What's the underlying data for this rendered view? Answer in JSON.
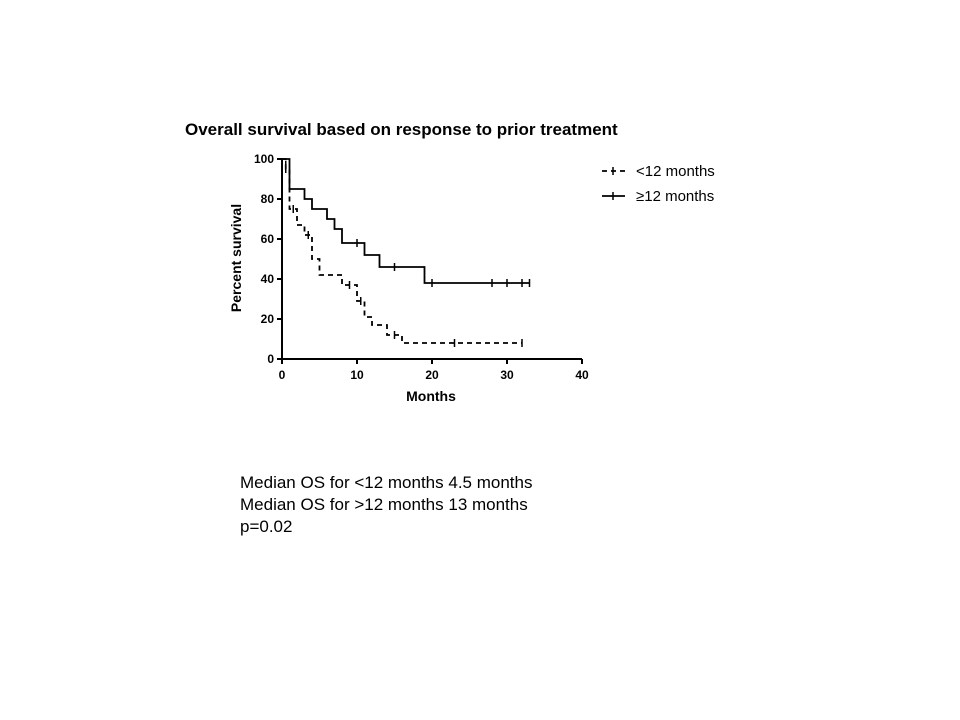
{
  "chart_data": {
    "type": "line",
    "subtype": "kaplan-meier step plot",
    "title": "Overall survival based on response to prior treatment",
    "xlabel": "Months",
    "ylabel": "Percent survival",
    "xlim": [
      0,
      40
    ],
    "ylim": [
      0,
      100
    ],
    "xticks": [
      0,
      10,
      20,
      30,
      40
    ],
    "yticks": [
      0,
      20,
      40,
      60,
      80,
      100
    ],
    "grid": false,
    "legend_position": "right",
    "series": [
      {
        "name": "<12 months",
        "line_style": "dashed",
        "color": "#000000",
        "steps": [
          [
            0,
            100
          ],
          [
            0.5,
            95
          ],
          [
            1,
            75
          ],
          [
            2,
            67
          ],
          [
            3,
            62
          ],
          [
            4,
            50
          ],
          [
            5,
            42
          ],
          [
            8,
            37
          ],
          [
            10,
            29
          ],
          [
            11,
            21
          ],
          [
            12,
            17
          ],
          [
            14,
            12
          ],
          [
            16,
            8
          ],
          [
            32,
            8
          ]
        ],
        "censored": [
          [
            0.5,
            95
          ],
          [
            1.5,
            75
          ],
          [
            3.5,
            62
          ],
          [
            9,
            37
          ],
          [
            10.5,
            29
          ],
          [
            15,
            12
          ],
          [
            23,
            8
          ],
          [
            32,
            8
          ]
        ]
      },
      {
        "name": "≥12 months",
        "line_style": "solid",
        "color": "#000000",
        "steps": [
          [
            0,
            100
          ],
          [
            1,
            85
          ],
          [
            3,
            80
          ],
          [
            4,
            75
          ],
          [
            6,
            70
          ],
          [
            7,
            65
          ],
          [
            8,
            58
          ],
          [
            11,
            52
          ],
          [
            13,
            46
          ],
          [
            19,
            38
          ],
          [
            33,
            38
          ]
        ],
        "censored": [
          [
            0.5,
            97
          ],
          [
            10,
            58
          ],
          [
            15,
            46
          ],
          [
            20,
            38
          ],
          [
            28,
            38
          ],
          [
            30,
            38
          ],
          [
            32,
            38
          ],
          [
            33,
            38
          ]
        ]
      }
    ]
  },
  "notes": [
    "Median OS for <12 months 4.5 months",
    "Median OS for >12 months 13 months",
    "p=0.02"
  ]
}
